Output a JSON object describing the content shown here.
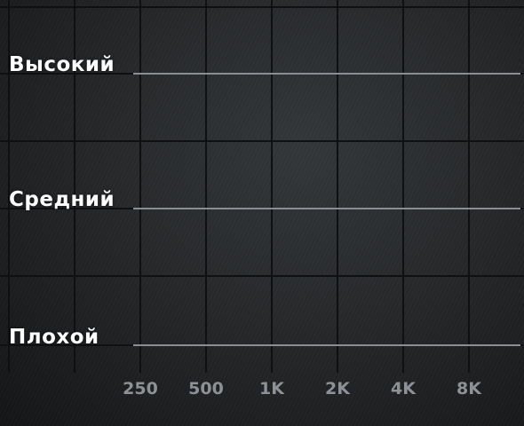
{
  "chart_data": {
    "type": "table",
    "x_ticks": [
      "250",
      "500",
      "1K",
      "2K",
      "4K",
      "8K"
    ],
    "levels": [
      {
        "label": "Высокий"
      },
      {
        "label": "Средний"
      },
      {
        "label": "Плохой"
      }
    ],
    "grid": true,
    "colors": {
      "background": "#222426",
      "grid_line": "#0f1011",
      "level_line": "#8a8d91",
      "level_text": "#ffffff",
      "tick_text": "#8e9195"
    }
  }
}
